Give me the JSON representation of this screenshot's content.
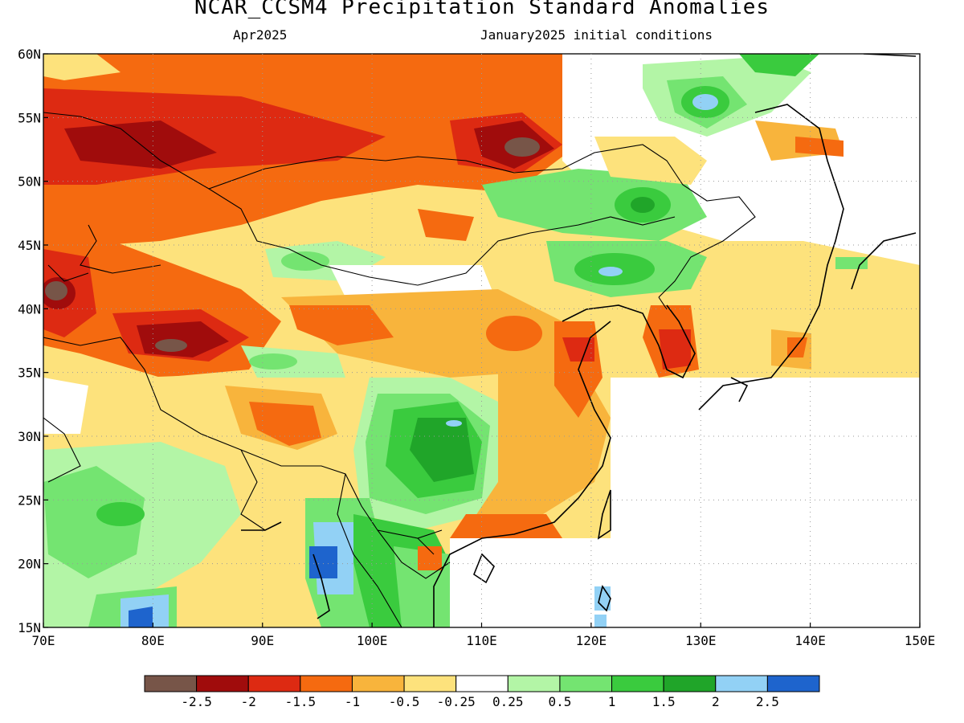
{
  "title": "NCAR_CCSM4 Precipitation Standard Anomalies",
  "subtitle_left": "Apr2025",
  "subtitle_right": "January2025 initial conditions",
  "map": {
    "lon_range": [
      70,
      150
    ],
    "lat_range": [
      15,
      60
    ],
    "x_ticks": [
      "70E",
      "80E",
      "90E",
      "100E",
      "110E",
      "120E",
      "130E",
      "140E",
      "150E"
    ],
    "y_ticks": [
      "60N",
      "55N",
      "50N",
      "45N",
      "40N",
      "35N",
      "30N",
      "25N",
      "20N",
      "15N"
    ],
    "grid": "dotted",
    "colors": {
      "land_outline": "#000000",
      "grid": "#999999"
    }
  },
  "legend": {
    "colors": [
      "#775548",
      "#a00c0c",
      "#dd2a12",
      "#f56a10",
      "#f8b43c",
      "#fde27c",
      "#ffffff",
      "#b3f5a6",
      "#74e471",
      "#3acb3e",
      "#20a529",
      "#92d1f5",
      "#1e64cd"
    ],
    "labels": [
      "-2.5",
      "-2",
      "-1.5",
      "-1",
      "-0.5",
      "-0.25",
      "0.25",
      "0.5",
      "1",
      "1.5",
      "2",
      "2.5"
    ]
  },
  "anomaly_regions": [
    {
      "name": "north-band",
      "value": -1
    },
    {
      "name": "northwest-max",
      "value": -2
    },
    {
      "name": "baikal-max",
      "value": -2.5
    },
    {
      "name": "kazakh-max",
      "value": -2.5
    },
    {
      "name": "tarim-max",
      "value": -2.5
    },
    {
      "name": "central-china-wet",
      "value": 1.5
    },
    {
      "name": "manchuria-wet",
      "value": 1.5
    },
    {
      "name": "northeast-mongolia-wet",
      "value": 2
    },
    {
      "name": "myanmar-wet",
      "value": 2.5
    },
    {
      "name": "india-wet",
      "value": 1
    },
    {
      "name": "korea-dry",
      "value": -1.5
    },
    {
      "name": "east-china-dry",
      "value": -1
    }
  ]
}
